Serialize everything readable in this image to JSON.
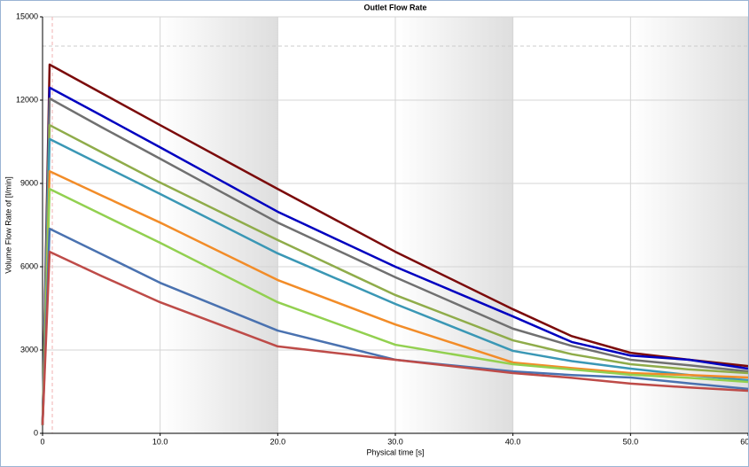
{
  "chart_data": {
    "type": "line",
    "title": "Outlet Flow Rate",
    "x_label": "Physical time [s]",
    "y_label": "Volume Flow Rate of  [l/min]",
    "x": [
      0,
      0.6,
      5,
      10,
      20,
      30,
      40,
      45,
      50,
      55,
      60
    ],
    "series": [
      {
        "color": "#7b0a0a",
        "values": [
          300,
          13280,
          12260,
          11100,
          8800,
          6540,
          4470,
          3500,
          2900,
          2650,
          2420
        ]
      },
      {
        "color": "#0000c0",
        "values": [
          300,
          12450,
          11450,
          10300,
          7980,
          6000,
          4210,
          3290,
          2800,
          2650,
          2330
        ]
      },
      {
        "color": "#707070",
        "values": [
          300,
          12060,
          11030,
          9890,
          7590,
          5620,
          3770,
          3150,
          2650,
          2450,
          2230
        ]
      },
      {
        "color": "#8fac4a",
        "values": [
          300,
          11100,
          10130,
          9030,
          6960,
          4980,
          3350,
          2850,
          2490,
          2300,
          2170
        ]
      },
      {
        "color": "#3a97b5",
        "values": [
          300,
          10600,
          9670,
          8620,
          6480,
          4660,
          2970,
          2600,
          2330,
          2100,
          1910
        ]
      },
      {
        "color": "#f28c28",
        "values": [
          300,
          9440,
          8570,
          7590,
          5520,
          3920,
          2550,
          2350,
          2170,
          2100,
          2010
        ]
      },
      {
        "color": "#92d050",
        "values": [
          300,
          8800,
          7890,
          6860,
          4720,
          3190,
          2490,
          2300,
          2110,
          2000,
          1850
        ]
      },
      {
        "color": "#4a72b0",
        "values": [
          300,
          7370,
          6460,
          5420,
          3700,
          2650,
          2230,
          2100,
          2010,
          1800,
          1600
        ]
      },
      {
        "color": "#be4b48",
        "values": [
          300,
          6540,
          5670,
          4720,
          3130,
          2650,
          2170,
          2000,
          1790,
          1650,
          1530
        ]
      }
    ],
    "xlim": [
      0,
      60
    ],
    "xticks": [
      0,
      {
        "value": 10,
        "label": "10.0"
      },
      {
        "value": 20,
        "label": "20.0"
      },
      {
        "value": 30,
        "label": "30.0"
      },
      {
        "value": 40,
        "label": "40.0"
      },
      {
        "value": 50,
        "label": "50.0"
      },
      {
        "value": 60,
        "label": "60.0"
      }
    ],
    "ylim": [
      0,
      15000
    ],
    "yticks": [
      0,
      3000,
      6000,
      9000,
      12000,
      15000
    ],
    "grid": true
  }
}
